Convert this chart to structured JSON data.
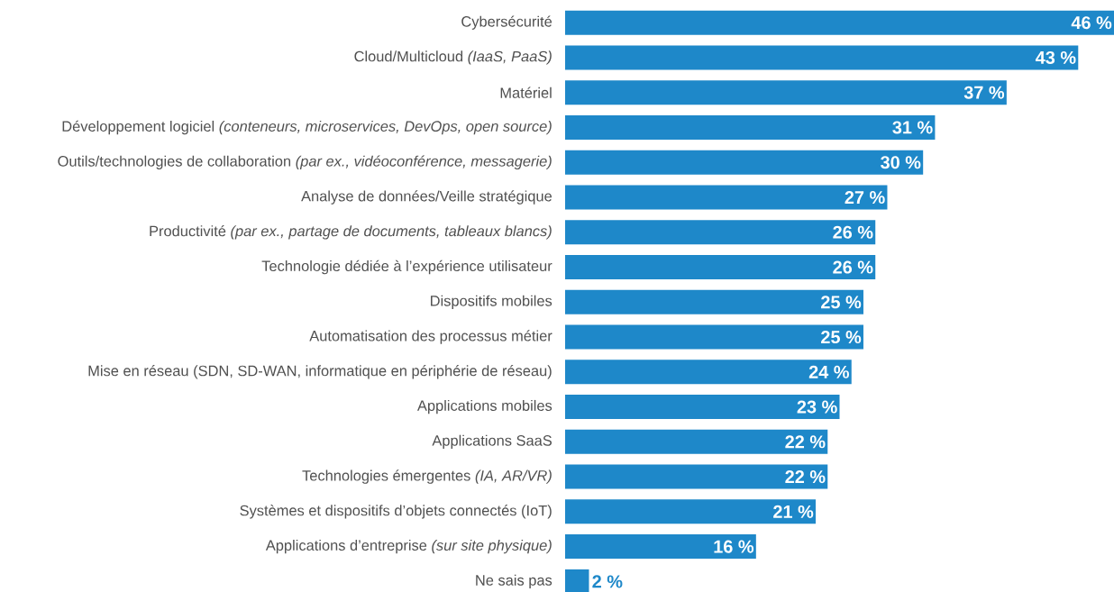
{
  "chart_data": {
    "type": "bar",
    "orientation": "horizontal",
    "color": "#1e88c9",
    "categories": [
      "Cybersécurité",
      "Cloud/Multicloud *(IaaS, PaaS)*",
      "Matériel",
      "Développement logiciel *(conteneurs, microservices, DevOps, open source)*",
      "Outils/technologies de collaboration *(par ex., vidéoconférence, messagerie)*",
      "Analyse de données/Veille stratégique",
      "Productivité *(par ex., partage de documents, tableaux blancs)*",
      "Technologie dédiée à l’expérience utilisateur",
      "Dispositifs mobiles",
      "Automatisation des processus métier",
      "Mise en réseau (SDN, SD-WAN, informatique en périphérie de réseau)",
      "Applications mobiles",
      "Applications SaaS",
      "Technologies émergentes *(IA, AR/VR)*",
      "Systèmes et dispositifs d’objets connectés (IoT)",
      "Applications d’entreprise *(sur site physique)*",
      "Ne sais pas"
    ],
    "values": [
      46,
      43,
      37,
      31,
      30,
      27,
      26,
      26,
      25,
      25,
      24,
      23,
      22,
      22,
      21,
      16,
      2
    ],
    "value_labels": [
      "46 %",
      "43 %",
      "37 %",
      "31 %",
      "30 %",
      "27 %",
      "26 %",
      "26 %",
      "25 %",
      "25 %",
      "24 %",
      "23 %",
      "22 %",
      "22 %",
      "21 %",
      "16 %",
      "2 %"
    ]
  }
}
